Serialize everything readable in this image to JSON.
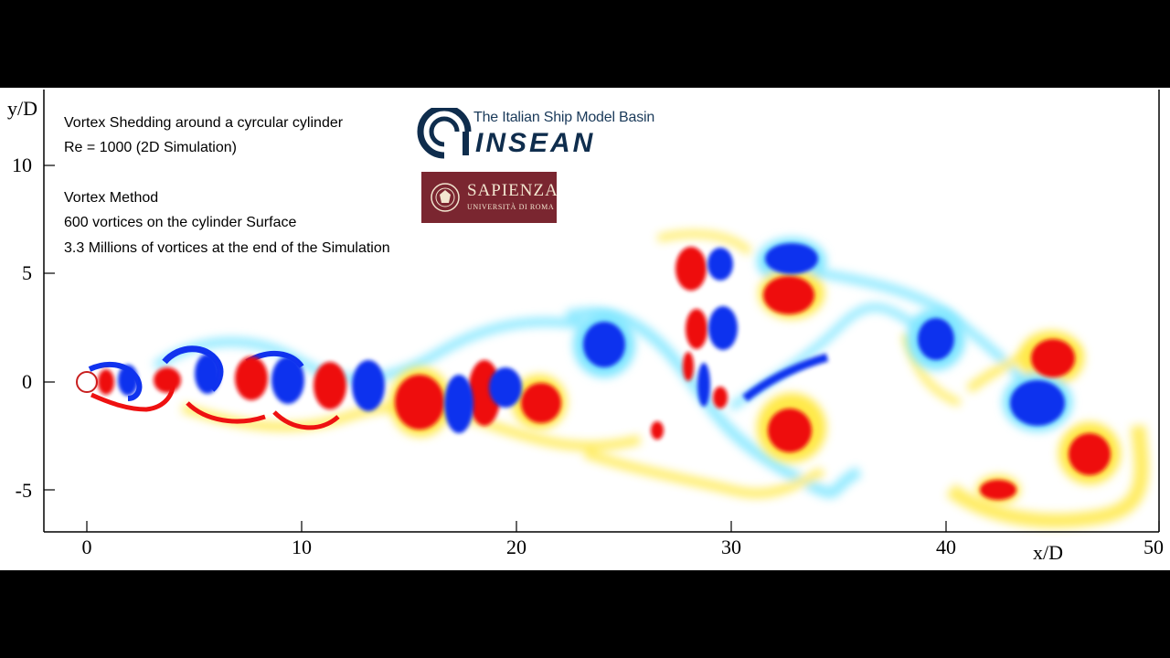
{
  "title_lines": [
    "Vortex Shedding around a cyrcular cylinder",
    "Re = 1000 (2D Simulation)",
    "Vortex Method",
    "600 vortices on the cylinder Surface",
    "3.3 Millions of vortices at the end of the Simulation"
  ],
  "axes": {
    "xlabel": "x/D",
    "ylabel": "y/D",
    "xticks": [
      "0",
      "10",
      "20",
      "30",
      "40",
      "50"
    ],
    "yticks": [
      "10",
      "5",
      "0",
      "-5"
    ]
  },
  "logos": {
    "insean_subtitle": "The Italian Ship Model Basin",
    "insean_name": "INSEAN",
    "sapienza_name": "SAPIENZA",
    "sapienza_university": "UNIVERSITÀ DI ROMA"
  },
  "colors": {
    "positive_vorticity": "#ee1111",
    "negative_vorticity": "#1133ee",
    "weak_positive": "#ffe94a",
    "weak_negative": "#7fe6ff"
  }
}
